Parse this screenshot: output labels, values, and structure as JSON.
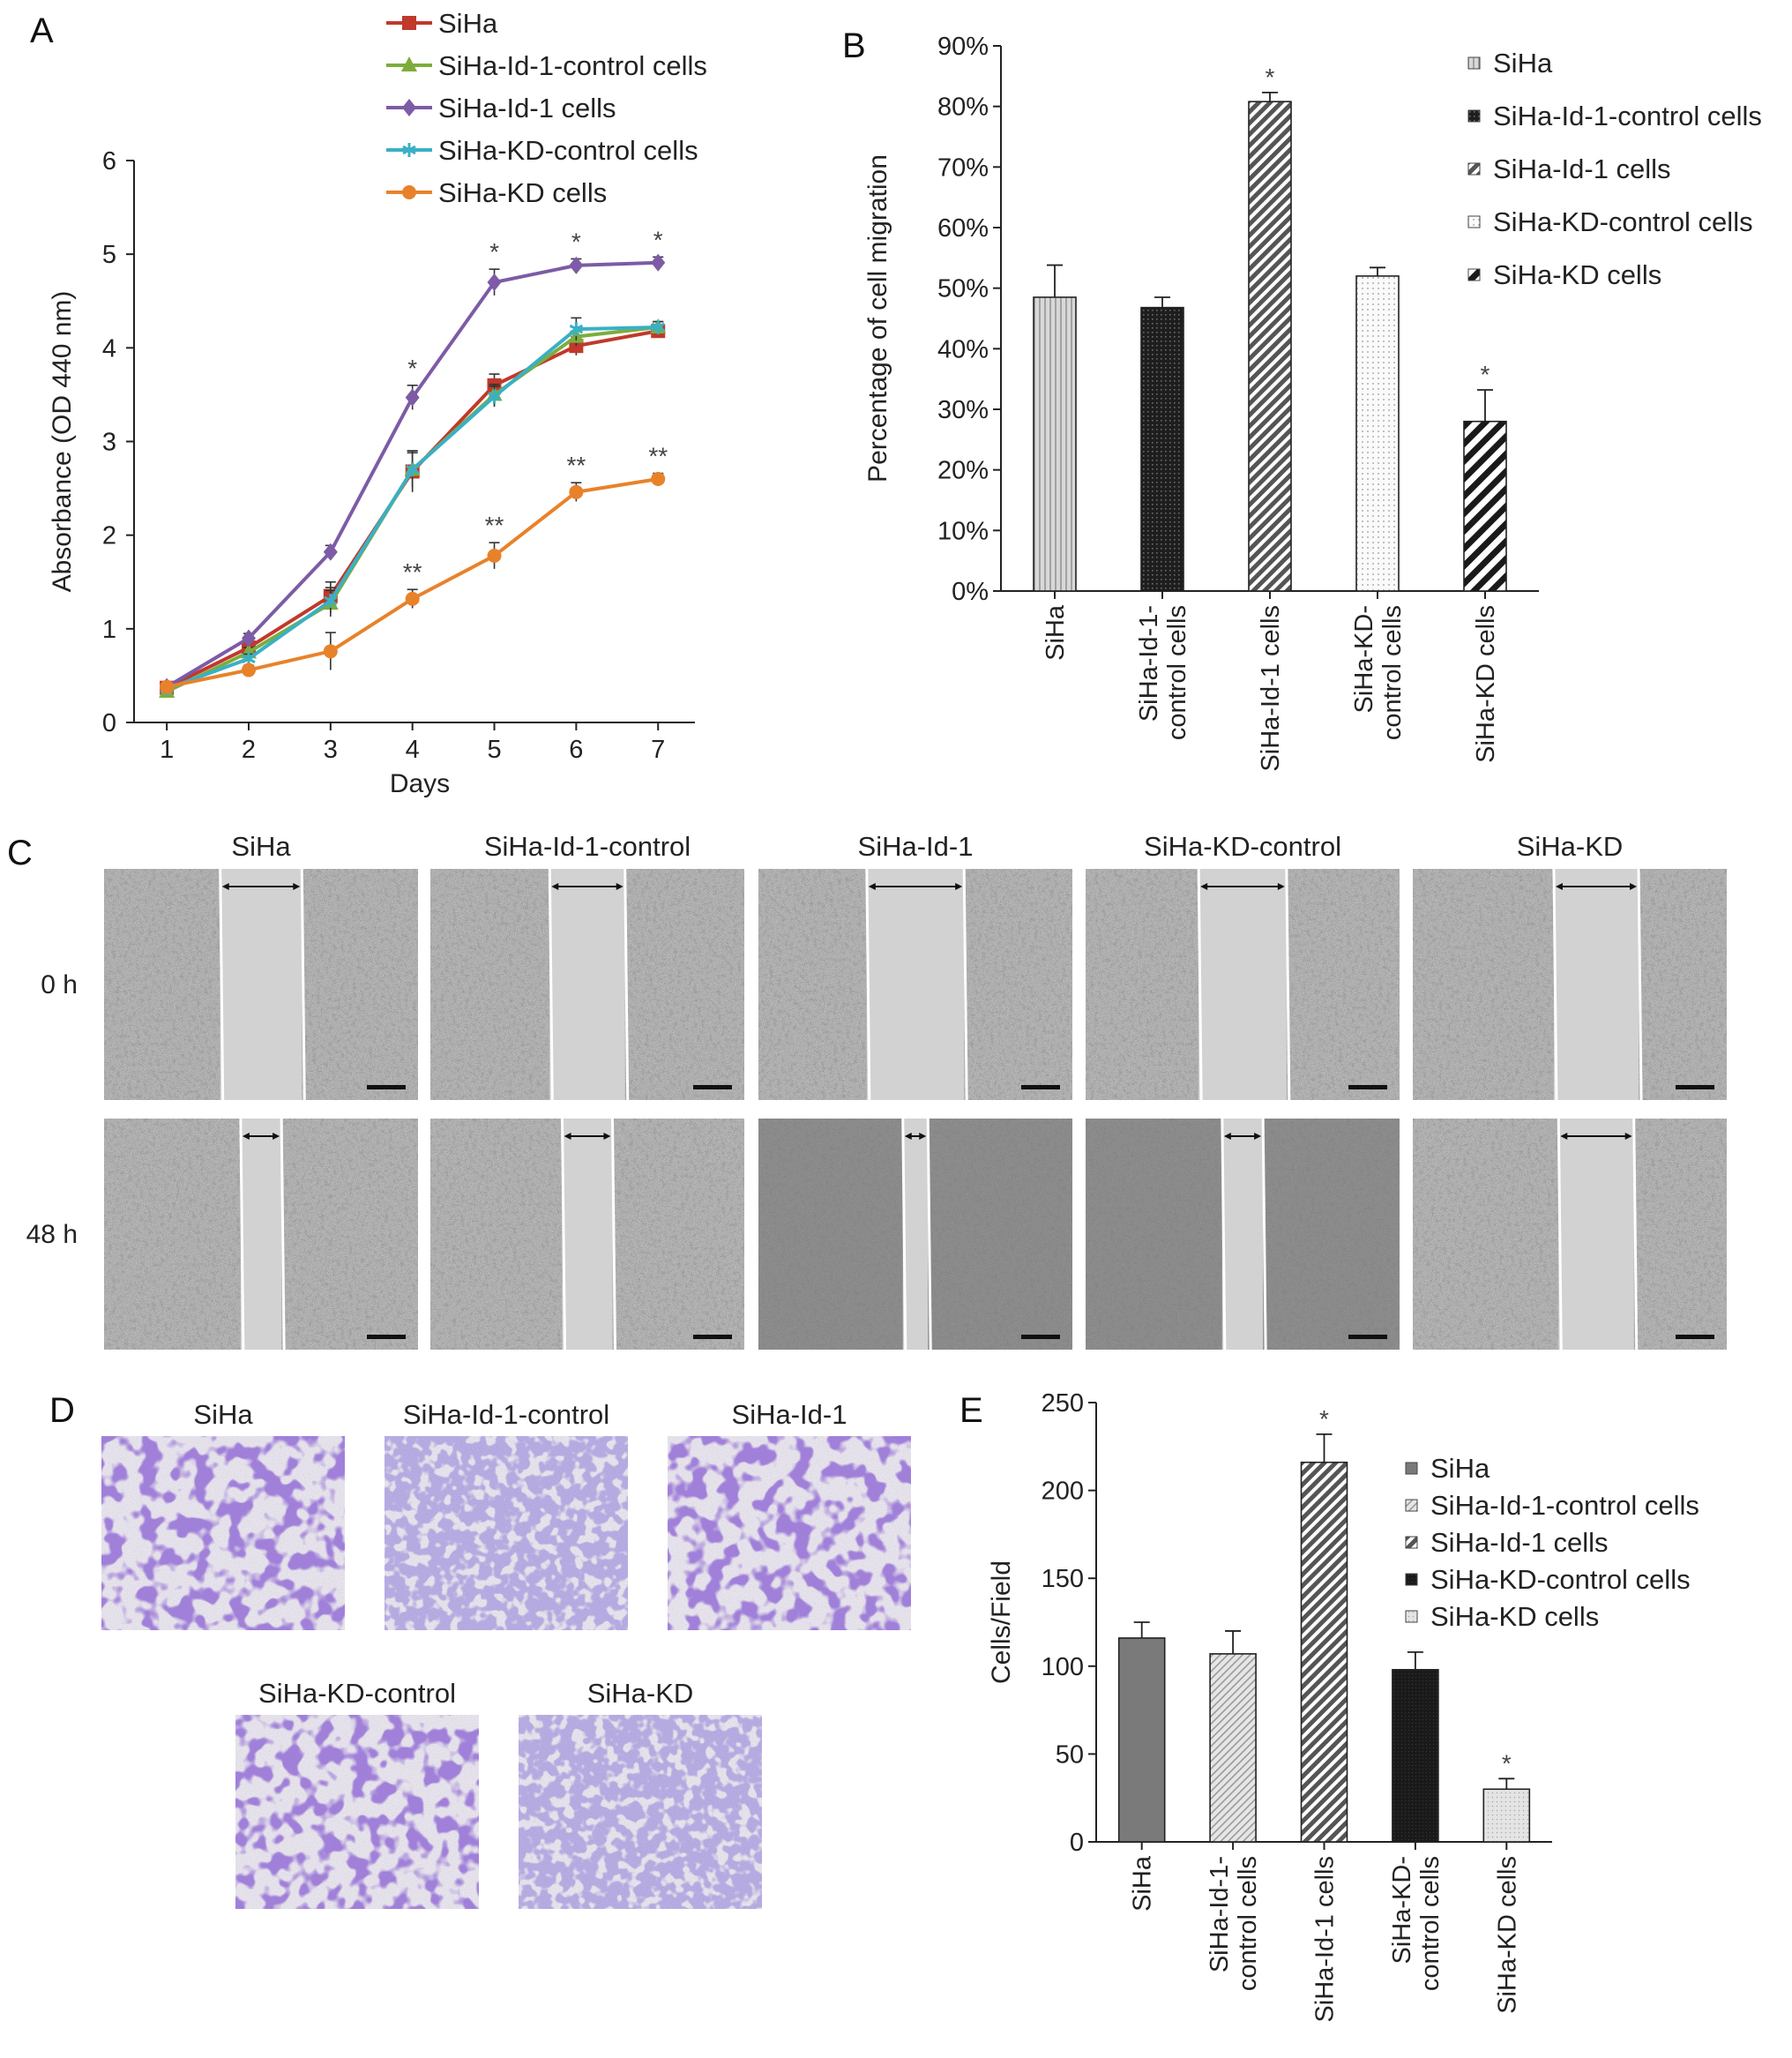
{
  "figure": {
    "panel_letters": [
      "A",
      "B",
      "C",
      "D",
      "E"
    ]
  },
  "chart_data": [
    {
      "panel": "A",
      "type": "line",
      "xlabel": "Days",
      "ylabel": "Absorbance (OD 440 nm)",
      "x": [
        1,
        2,
        3,
        4,
        5,
        6,
        7
      ],
      "xlim": [
        0.6,
        7.45
      ],
      "ylim": [
        0,
        6
      ],
      "yticks": [
        0,
        1,
        2,
        3,
        4,
        5,
        6
      ],
      "grid": false,
      "legend": "top",
      "series": [
        {
          "name": "SiHa",
          "color": "#c0392b",
          "marker": "square",
          "values": [
            0.37,
            0.8,
            1.35,
            2.68,
            3.6,
            4.02,
            4.18
          ],
          "errors": [
            0.04,
            0.05,
            0.15,
            0.22,
            0.12,
            0.1,
            0.06
          ]
        },
        {
          "name": "SiHa-Id-1-control cells",
          "color": "#7cad3c",
          "marker": "triangle",
          "values": [
            0.33,
            0.75,
            1.27,
            2.7,
            3.5,
            4.12,
            4.22
          ],
          "errors": [
            0.04,
            0.05,
            0.14,
            0.2,
            0.11,
            0.1,
            0.06
          ]
        },
        {
          "name": "SiHa-Id-1 cells",
          "color": "#7d5ba6",
          "marker": "diamond",
          "values": [
            0.38,
            0.9,
            1.82,
            3.47,
            4.7,
            4.88,
            4.91
          ],
          "errors": [
            0.04,
            0.05,
            0.07,
            0.13,
            0.14,
            0.07,
            0.06
          ]
        },
        {
          "name": "SiHa-KD-control cells",
          "color": "#3ab0c4",
          "marker": "star",
          "values": [
            0.36,
            0.68,
            1.3,
            2.7,
            3.48,
            4.2,
            4.22
          ],
          "errors": [
            0.04,
            0.05,
            0.14,
            0.18,
            0.11,
            0.12,
            0.06
          ]
        },
        {
          "name": "SiHa-KD cells",
          "color": "#e8822a",
          "marker": "circle",
          "values": [
            0.38,
            0.56,
            0.76,
            1.32,
            1.78,
            2.46,
            2.6
          ],
          "errors": [
            0.04,
            0.05,
            0.2,
            0.1,
            0.14,
            0.1,
            0.06
          ]
        }
      ],
      "annotations": [
        {
          "series": 2,
          "x": 4,
          "text": "*"
        },
        {
          "series": 2,
          "x": 5,
          "text": "*"
        },
        {
          "series": 2,
          "x": 6,
          "text": "*"
        },
        {
          "series": 2,
          "x": 7,
          "text": "*"
        },
        {
          "series": 4,
          "x": 4,
          "text": "**"
        },
        {
          "series": 4,
          "x": 5,
          "text": "**"
        },
        {
          "series": 4,
          "x": 6,
          "text": "**"
        },
        {
          "series": 4,
          "x": 7,
          "text": "**"
        }
      ]
    },
    {
      "panel": "B",
      "type": "bar",
      "ylabel": "Percentage of cell migration",
      "categories": [
        [
          "SiHa"
        ],
        [
          "SiHa-Id-1-",
          "control cells"
        ],
        [
          "SiHa-Id-1 cells"
        ],
        [
          "SiHa-KD-",
          "control cells"
        ],
        [
          "SiHa-KD cells"
        ]
      ],
      "values": [
        48.5,
        46.8,
        80.8,
        52.0,
        28.0
      ],
      "errors": [
        5.3,
        1.7,
        1.5,
        1.4,
        5.2
      ],
      "ylim": [
        0,
        90
      ],
      "yticks": [
        "0%",
        "10%",
        "20%",
        "30%",
        "40%",
        "50%",
        "60%",
        "70%",
        "80%",
        "90%"
      ],
      "patterns": [
        "vlines",
        "dense",
        "diag",
        "dots",
        "wide"
      ],
      "legend": "right",
      "legend_entries": [
        "SiHa",
        "SiHa-Id-1-control cells",
        "SiHa-Id-1 cells",
        "SiHa-KD-control cells",
        "SiHa-KD cells"
      ],
      "significance": [
        "",
        "",
        "*",
        "",
        "*"
      ]
    },
    {
      "panel": "E",
      "type": "bar",
      "ylabel": "Cells/Field",
      "categories": [
        [
          "SiHa"
        ],
        [
          "SiHa-Id-1-",
          "control cells"
        ],
        [
          "SiHa-Id-1 cells"
        ],
        [
          "SiHa-KD-",
          "control cells"
        ],
        [
          "SiHa-KD cells"
        ]
      ],
      "values": [
        116,
        107,
        216,
        98,
        30
      ],
      "errors": [
        9,
        13,
        16,
        10,
        6
      ],
      "ylim": [
        0,
        250
      ],
      "yticks": [
        "0",
        "50",
        "100",
        "150",
        "200",
        "250"
      ],
      "patterns": [
        "solid-gray",
        "light-diag",
        "diag",
        "solid-black",
        "light-dots"
      ],
      "legend": "right",
      "legend_entries": [
        "SiHa",
        "SiHa-Id-1-control cells",
        "SiHa-Id-1 cells",
        "SiHa-KD-control cells",
        "SiHa-KD cells"
      ],
      "significance": [
        "",
        "",
        "*",
        "",
        "*"
      ]
    }
  ],
  "panel_c": {
    "columns": [
      "SiHa",
      "SiHa-Id-1-control",
      "SiHa-Id-1",
      "SiHa-KD-control",
      "SiHa-KD"
    ],
    "rows": [
      "0 h",
      "48 h"
    ],
    "gap_fraction_0h": [
      0.26,
      0.24,
      0.31,
      0.28,
      0.27
    ],
    "gap_fraction_48h": [
      0.13,
      0.16,
      0.08,
      0.13,
      0.24
    ]
  },
  "panel_d": {
    "labels": [
      "SiHa",
      "SiHa-Id-1-control",
      "SiHa-Id-1",
      "SiHa-KD-control",
      "SiHa-KD"
    ]
  }
}
